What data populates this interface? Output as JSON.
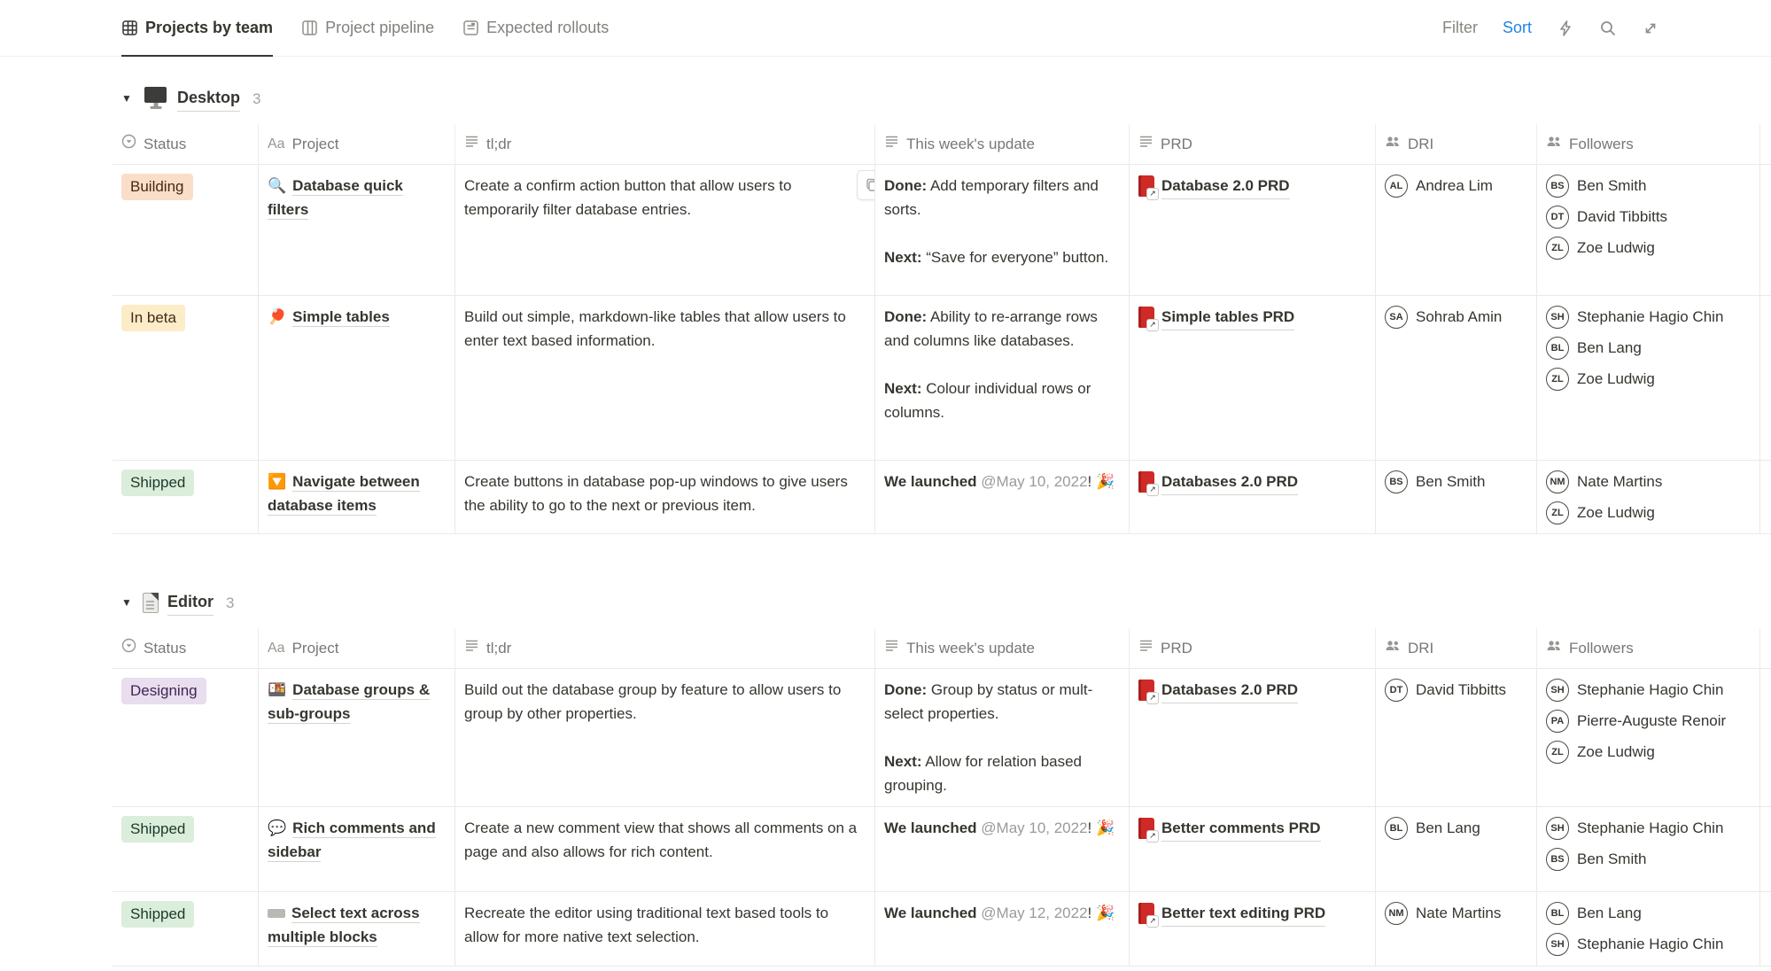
{
  "toolbar": {
    "tabs": [
      {
        "label": "Projects by team",
        "icon": "table-view-icon",
        "active": true
      },
      {
        "label": "Project pipeline",
        "icon": "board-view-icon",
        "active": false
      },
      {
        "label": "Expected rollouts",
        "icon": "list-view-icon",
        "active": false
      }
    ],
    "filter_label": "Filter",
    "sort_label": "Sort",
    "sort_color": "#2383e2",
    "action_icons": [
      "bolt-icon",
      "search-icon",
      "expand-icon"
    ]
  },
  "columns": [
    {
      "label": "Status",
      "icon": "status-icon"
    },
    {
      "label": "Project",
      "icon": "title-icon"
    },
    {
      "label": "tl;dr",
      "icon": "text-icon"
    },
    {
      "label": "This week's update",
      "icon": "text-icon"
    },
    {
      "label": "PRD",
      "icon": "text-icon"
    },
    {
      "label": "DRI",
      "icon": "people-icon"
    },
    {
      "label": "Followers",
      "icon": "people-icon"
    }
  ],
  "status_styles": {
    "Building": {
      "bg": "#fadec9",
      "fg": "#49290e"
    },
    "In beta": {
      "bg": "#fdecc8",
      "fg": "#402c1b"
    },
    "Shipped": {
      "bg": "#dbeddb",
      "fg": "#1c3829"
    },
    "Designing": {
      "bg": "#e8deee",
      "fg": "#412454"
    }
  },
  "groups": [
    {
      "name": "Desktop",
      "icon": "desktop-icon",
      "count": "3",
      "rows": [
        {
          "status": "Building",
          "project": {
            "emoji": "🔍",
            "title": "Database quick filters"
          },
          "tldr": "Create a confirm action button that allow users to temporarily filter database entries.",
          "copy_button": true,
          "update": [
            [
              {
                "b": "Done:"
              },
              {
                "t": " Add temporary filters and sorts."
              }
            ],
            [
              {
                "b": "Next:"
              },
              {
                "t": " “Save for everyone” button."
              }
            ]
          ],
          "prd": "Database 2.0 PRD",
          "dri": [
            "Andrea Lim"
          ],
          "followers": [
            "Ben Smith",
            "David Tibbitts",
            "Zoe Ludwig"
          ],
          "min_height": 148
        },
        {
          "status": "In beta",
          "project": {
            "emoji": "🏓",
            "title": "Simple tables"
          },
          "tldr": "Build out simple, markdown-like tables that allow users to enter text based information.",
          "update": [
            [
              {
                "b": "Done:"
              },
              {
                "t": " Ability to re-arrange rows and columns like databases."
              }
            ],
            [
              {
                "b": "Next:"
              },
              {
                "t": " Colour individual rows or columns."
              }
            ]
          ],
          "prd": "Simple tables PRD",
          "dri": [
            "Sohrab Amin"
          ],
          "followers": [
            "Stephanie Hagio Chin",
            "Ben Lang",
            "Zoe Ludwig"
          ],
          "min_height": 186
        },
        {
          "status": "Shipped",
          "project": {
            "emoji": "🔽",
            "title": "Navigate between database items"
          },
          "tldr": "Create buttons in database pop-up windows to give users the ability to go to the next or previous item.",
          "update": [
            [
              {
                "b": "We launched"
              },
              {
                "m": " @May 10, 2022"
              },
              {
                "t": "!"
              },
              {
                "t": " 🎉"
              }
            ]
          ],
          "prd": "Databases 2.0 PRD",
          "dri": [
            "Ben Smith"
          ],
          "followers": [
            "Nate Martins",
            "Zoe Ludwig"
          ],
          "min_height": 76
        }
      ]
    },
    {
      "name": "Editor",
      "icon": "page-icon",
      "count": "3",
      "rows": [
        {
          "status": "Designing",
          "project": {
            "emoji": "🍱",
            "title": "Database groups & sub-groups"
          },
          "tldr": "Build out the database group by feature to allow users to group by other properties.",
          "update": [
            [
              {
                "b": "Done:"
              },
              {
                "t": " Group by status or mult-select properties."
              }
            ],
            [
              {
                "b": "Next:"
              },
              {
                "t": " Allow for relation based grouping."
              }
            ]
          ],
          "prd": "Databases 2.0 PRD",
          "dri": [
            "David Tibbitts"
          ],
          "followers": [
            "Stephanie Hagio Chin",
            "Pierre-Auguste Renoir",
            "Zoe Ludwig"
          ],
          "min_height": 152
        },
        {
          "status": "Shipped",
          "project": {
            "emoji": "💬",
            "title": "Rich comments and sidebar"
          },
          "tldr": "Create a new comment view that shows all comments on a page and also allows for rich content.",
          "update": [
            [
              {
                "b": "We launched"
              },
              {
                "m": " @May 10, 2022"
              },
              {
                "t": "!"
              },
              {
                "t": " 🎉"
              }
            ]
          ],
          "prd": "Better comments PRD",
          "dri": [
            "Ben Lang"
          ],
          "followers": [
            "Stephanie Hagio Chin",
            "Ben Smith"
          ],
          "min_height": 96
        },
        {
          "status": "Shipped",
          "project": {
            "emoji": "bar",
            "title": "Select text across multiple blocks"
          },
          "tldr": "Recreate the editor using traditional text based tools to allow for more native text selection.",
          "update": [
            [
              {
                "b": "We launched"
              },
              {
                "m": " @May 12, 2022"
              },
              {
                "t": "!"
              },
              {
                "t": " 🎉"
              }
            ]
          ],
          "prd": "Better text editing PRD",
          "dri": [
            "Nate Martins"
          ],
          "followers": [
            "Ben Lang",
            "Stephanie Hagio Chin"
          ],
          "min_height": 84
        }
      ]
    }
  ]
}
